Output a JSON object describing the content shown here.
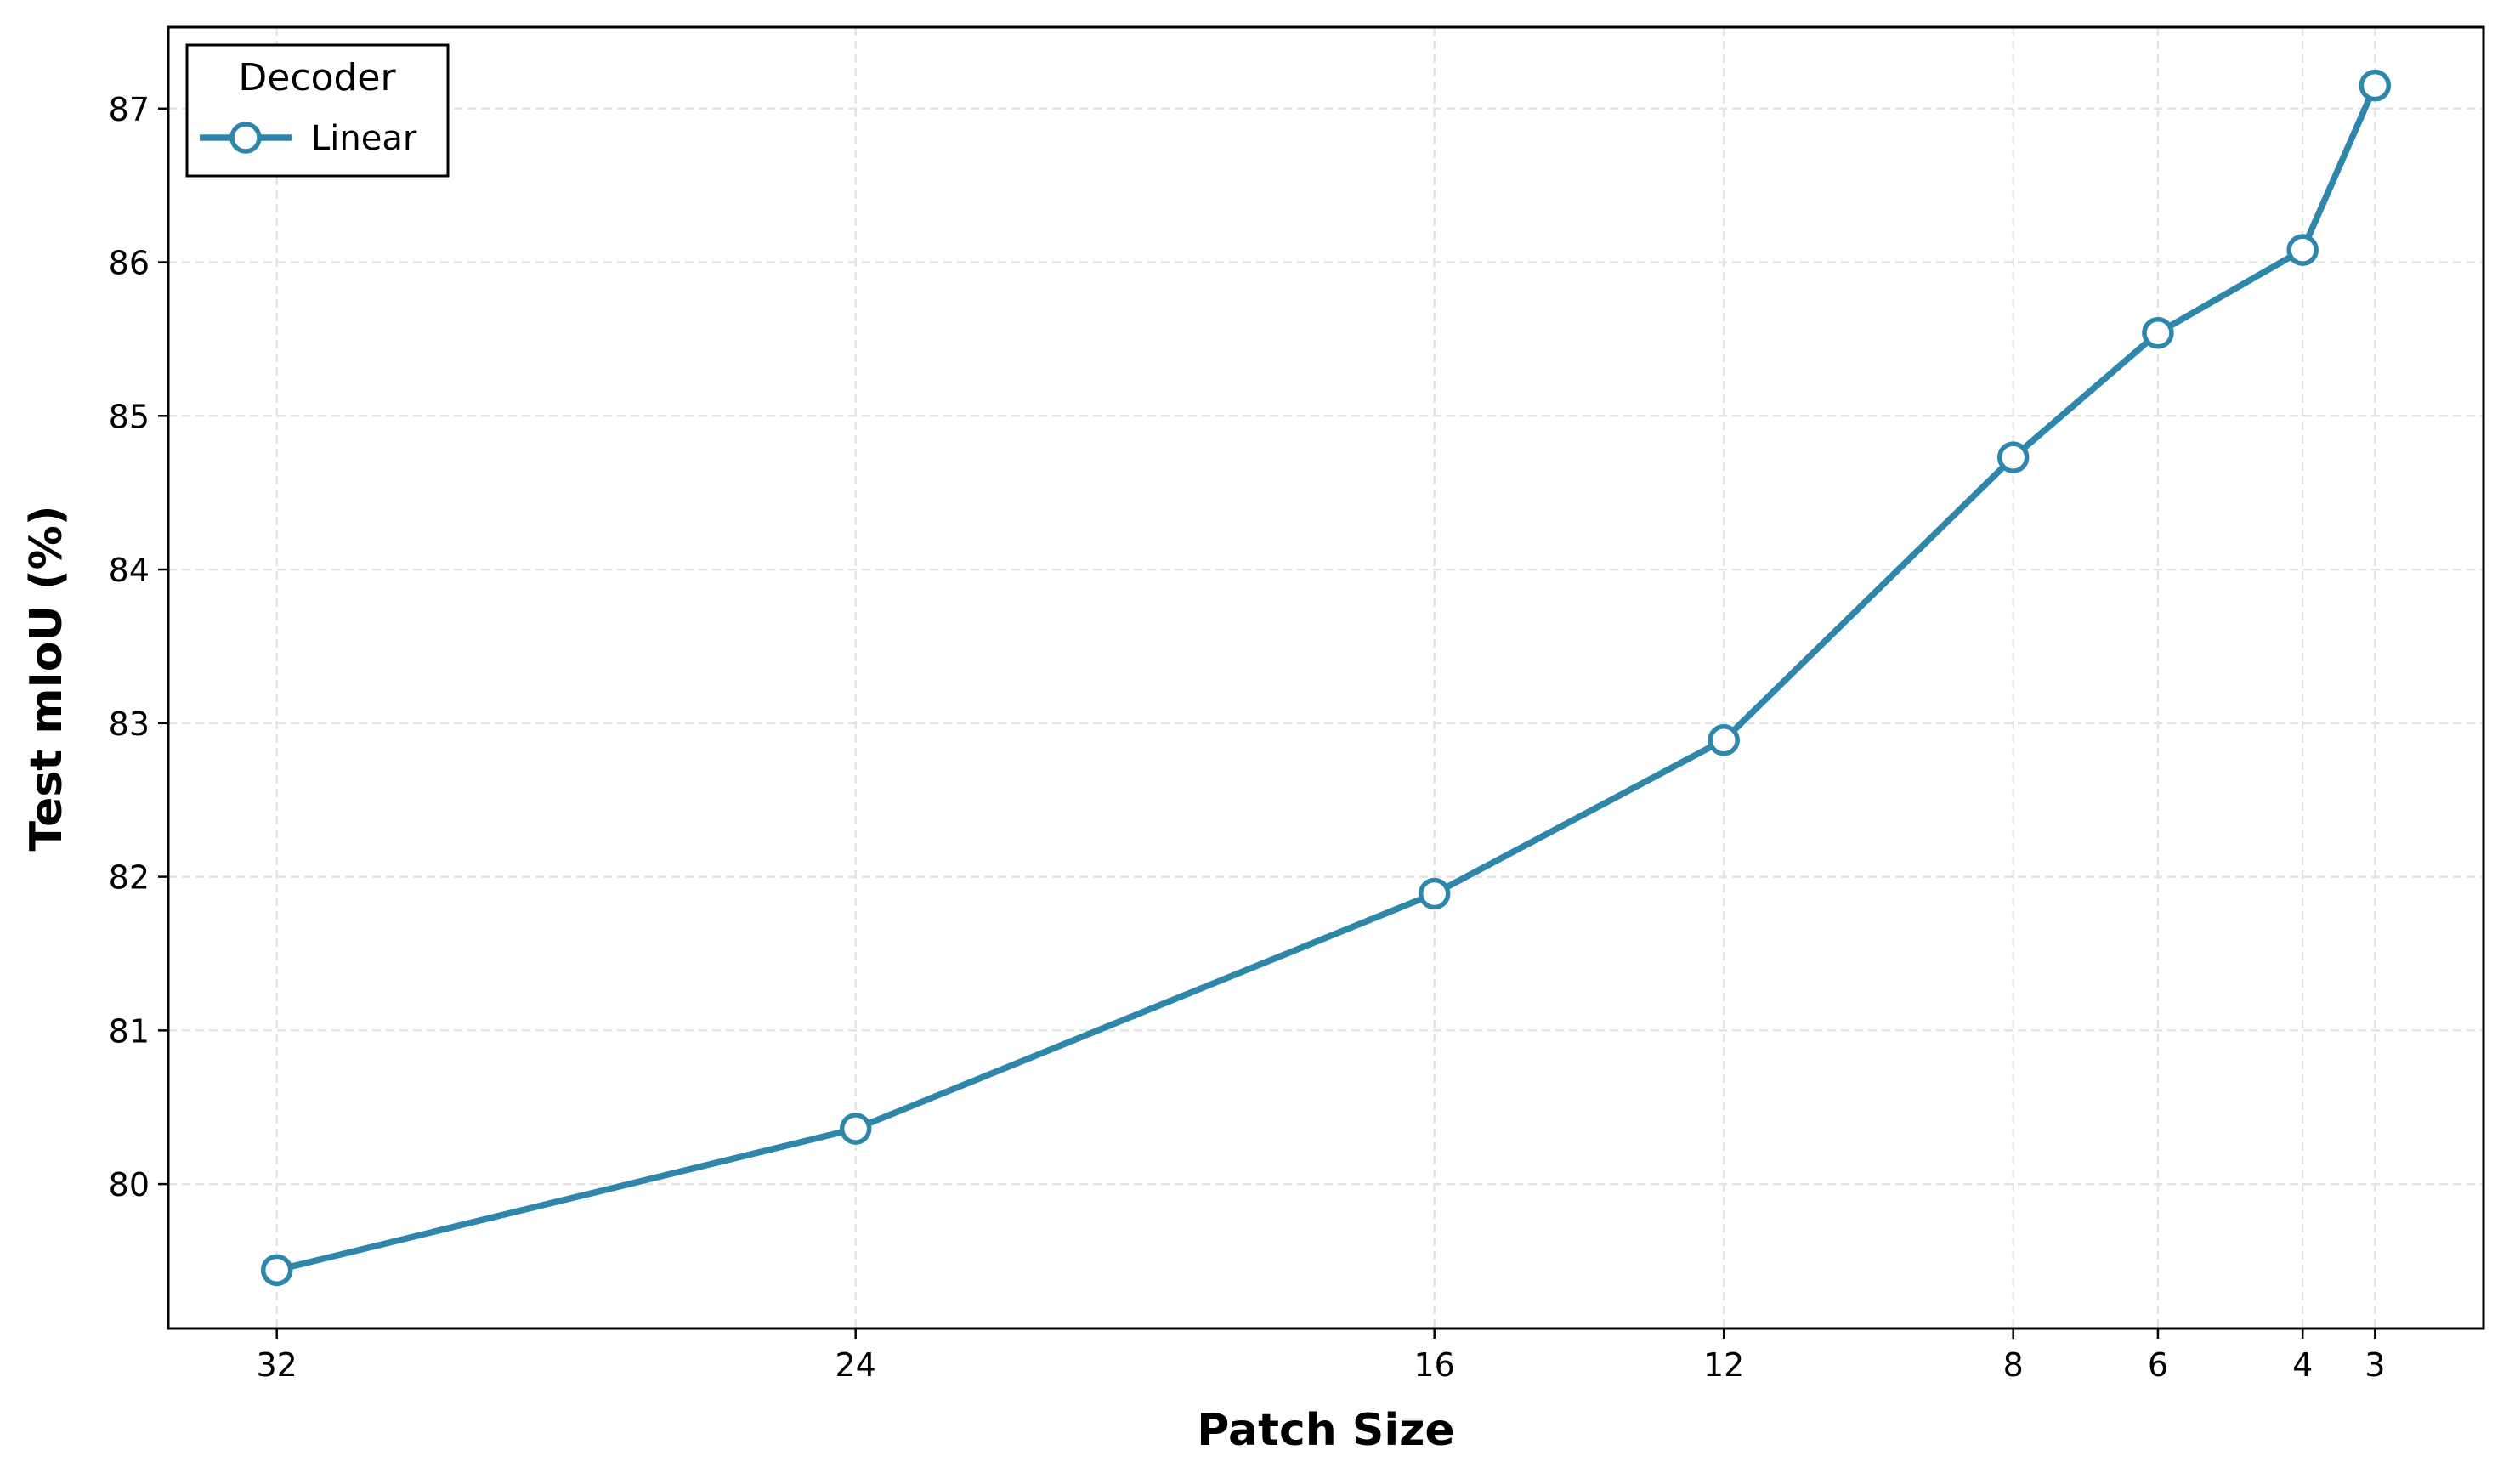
{
  "chart_data": {
    "type": "line",
    "xlabel": "Patch Size",
    "ylabel": "Test mIoU (%)",
    "x": [
      32,
      24,
      16,
      12,
      8,
      6,
      4,
      3
    ],
    "series": [
      {
        "name": "Linear",
        "color": "#2e86ab",
        "values": [
          79.44,
          80.36,
          81.89,
          82.89,
          84.73,
          85.54,
          86.08,
          87.15
        ]
      }
    ],
    "legend_title": "Decoder",
    "legend_position": "upper left",
    "xlim": [
      33.5,
      1.5
    ],
    "ylim": [
      79.06,
      87.53
    ],
    "xticks": [
      32,
      24,
      16,
      12,
      8,
      6,
      4,
      3
    ],
    "yticks": [
      80,
      81,
      82,
      83,
      84,
      85,
      86,
      87
    ],
    "grid": true
  }
}
